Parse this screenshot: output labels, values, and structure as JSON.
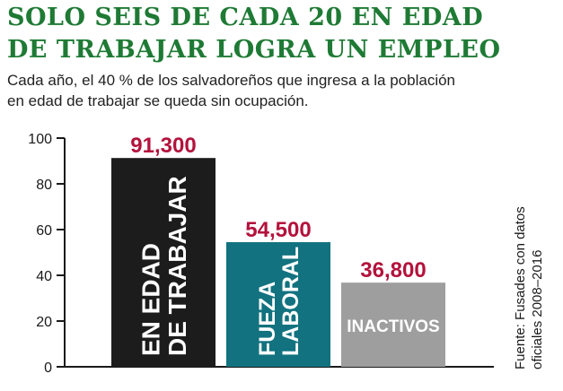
{
  "header": {
    "title_line1": "SOLO SEIS DE CADA 20 EN EDAD",
    "title_line2": "DE TRABAJAR LOGRA UN EMPLEO",
    "subtitle_line1": "Cada año, el 40 % de los salvadoreños que ingresa a la población",
    "subtitle_line2": "en edad de trabajar se queda sin ocupación."
  },
  "source": {
    "line1": "Fuente: Fusades con datos",
    "line2": "oficiales 2008–2016"
  },
  "colors": {
    "title": "#1e7a34",
    "value_labels": "#b3123c",
    "bars": [
      "#1c1c1c",
      "#12727f",
      "#9e9e9e"
    ]
  },
  "chart_data": {
    "type": "bar",
    "categories": [
      [
        "EN EDAD",
        "DE TRABAJAR"
      ],
      [
        "FUEZA",
        "LABORAL"
      ],
      [
        "INACTIVOS"
      ]
    ],
    "category_orientation": [
      "vertical",
      "vertical",
      "horizontal"
    ],
    "values": [
      91300,
      54500,
      36800
    ],
    "value_labels": [
      "91,300",
      "54,500",
      "36,800"
    ],
    "yticks": [
      0,
      20,
      40,
      60,
      80,
      100
    ],
    "ylim": [
      0,
      100
    ],
    "y_scale_note_units": "thousands",
    "grid": false,
    "title": "",
    "xlabel": "",
    "ylabel": ""
  }
}
